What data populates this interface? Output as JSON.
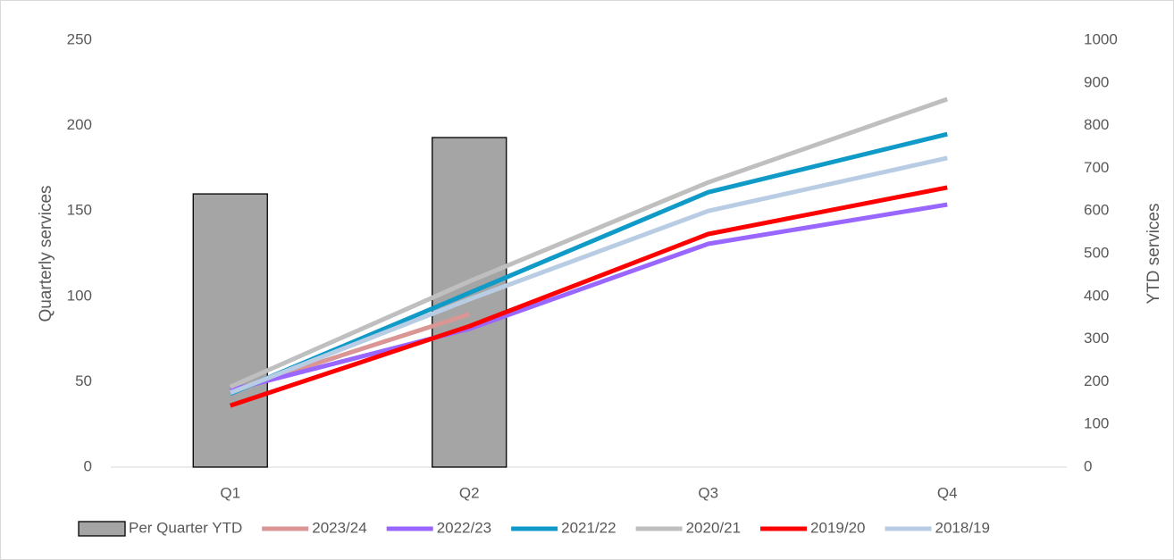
{
  "chart_data": {
    "type": "combo",
    "y_label": "Quarterly  services",
    "y2_label": "YTD services",
    "categories": [
      "Q1",
      "Q2",
      "Q3",
      "Q4"
    ],
    "series": [
      {
        "name": "Per Quarter YTD",
        "type": "bar",
        "color": "#a5a5a5",
        "values": [
          160,
          193,
          null,
          null
        ]
      },
      {
        "name": "2023/24",
        "type": "line",
        "axis": "y2",
        "color": "#da9694",
        "values": [
          178,
          358,
          null,
          null
        ]
      },
      {
        "name": "2022/23",
        "type": "line",
        "axis": "y2",
        "color": "#9966ff",
        "values": [
          180,
          324,
          523,
          615
        ]
      },
      {
        "name": "2021/22",
        "type": "line",
        "axis": "y2",
        "color": "#0f9ac8",
        "values": [
          172,
          408,
          644,
          780
        ]
      },
      {
        "name": "2020/21",
        "type": "line",
        "axis": "y2",
        "color": "#bfbfbf",
        "values": [
          188,
          435,
          667,
          862
        ]
      },
      {
        "name": "2019/20",
        "type": "line",
        "axis": "y2",
        "color": "#ff0000",
        "values": [
          144,
          330,
          546,
          655
        ]
      },
      {
        "name": "2018/19",
        "type": "line",
        "axis": "y2",
        "color": "#b8cce4",
        "values": [
          174,
          393,
          600,
          724
        ]
      }
    ],
    "ylim": [
      0,
      250
    ],
    "yticks": [
      0,
      50,
      100,
      150,
      200,
      250
    ],
    "y2lim": [
      0,
      1000
    ],
    "y2ticks": [
      0,
      100,
      200,
      300,
      400,
      500,
      600,
      700,
      800,
      900,
      1000
    ],
    "legend": "bottom"
  }
}
